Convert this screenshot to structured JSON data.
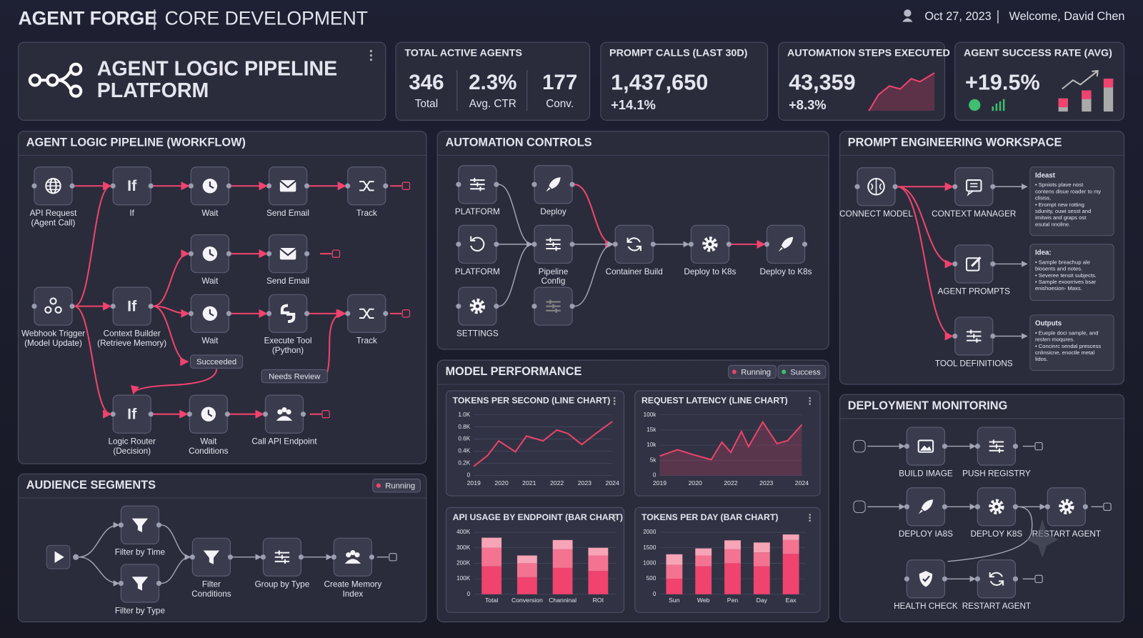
{
  "header": {
    "brand": "AGENT FORGE",
    "section": "CORE DEVELOPMENT",
    "date": "Oct 27, 2023",
    "welcome": "Welcome, David Chen"
  },
  "hero": {
    "title_lines": [
      "AGENT LOGIC PIPELINE",
      "PLATFORM"
    ]
  },
  "kpis": [
    {
      "title": "TOTAL ACTIVE AGENTS",
      "items": [
        {
          "value": "346",
          "label": "Total"
        },
        {
          "value": "2.3%",
          "label": "Avg. CTR"
        },
        {
          "value": "177",
          "label": "Conv."
        }
      ]
    },
    {
      "title": "PROMPT CALLS (LAST 30D)",
      "value": "1,437,650",
      "change": "+14.1%"
    },
    {
      "title": "AUTOMATION STEPS EXECUTED",
      "value": "43,359",
      "change": "+8.3%"
    },
    {
      "title": "AGENT SUCCESS RATE (AVG)",
      "value": "+19.5%"
    }
  ],
  "workflow": {
    "title": "AGENT LOGIC PIPELINE (WORKFLOW)",
    "nodes": [
      {
        "label": [
          "API Request",
          "(Agent Call)"
        ]
      },
      {
        "label": [
          "If"
        ],
        "glyph": "If"
      },
      {
        "label": [
          "Wait"
        ]
      },
      {
        "label": [
          "Send Email"
        ]
      },
      {
        "label": [
          "Track"
        ]
      },
      {
        "label": [
          "Wait"
        ]
      },
      {
        "label": [
          "Send Email"
        ]
      },
      {
        "label": [
          "Webhook Trigger",
          "(Model Update)"
        ]
      },
      {
        "label": [
          "Context Builder",
          "(Retrieve Memory)"
        ],
        "glyph": "If"
      },
      {
        "label": [
          "Wait"
        ]
      },
      {
        "label": [
          "Execute Tool",
          "(Python)"
        ]
      },
      {
        "label": [
          "Track"
        ]
      },
      {
        "label": [
          "Logic Router",
          "(Decision)"
        ],
        "glyph": "If"
      },
      {
        "label": [
          "Wait",
          "Conditions"
        ]
      },
      {
        "label": [
          "Call API Endpoint"
        ]
      }
    ],
    "badges": [
      "Succeeded",
      "Needs Review"
    ]
  },
  "automation": {
    "title": "AUTOMATION CONTROLS",
    "nodes": [
      {
        "label": [
          "PLATFORM"
        ]
      },
      {
        "label": [
          "Deploy"
        ]
      },
      {
        "label": [
          "PLATFORM"
        ]
      },
      {
        "label": [
          "Pipeline",
          "Config"
        ]
      },
      {
        "label": [
          "Container Build"
        ]
      },
      {
        "label": [
          "Deploy to K8s"
        ]
      },
      {
        "label": [
          "Deploy to K8s"
        ]
      },
      {
        "label": [
          "SETTINGS"
        ]
      },
      {
        "label": []
      }
    ]
  },
  "prompt": {
    "title": "PROMPT ENGINEERING WORKSPACE",
    "nodes": [
      {
        "label": [
          "CONNECT MODEL"
        ]
      },
      {
        "label": [
          "CONTEXT MANAGER"
        ]
      },
      {
        "label": [
          "AGENT PROMPTS"
        ]
      },
      {
        "label": [
          "TOOL DEFINITIONS"
        ]
      }
    ],
    "cards": [
      {
        "title": "Ideast",
        "lines": [
          "• Spniots plave nost",
          "contens disue roader to my",
          "clisiss.",
          "• Erompt new rotting",
          "sdunity, ouwi sesst and",
          "imitwis and graps ost",
          "esutal nnoline."
        ]
      },
      {
        "title": "Idea:",
        "lines": [
          "• Sample breachup ale",
          "biosents and notes.",
          "• Severee tensit subjects.",
          "• Sample exoorrives bsar",
          "enishoesion- Maxs."
        ]
      },
      {
        "title": "Outputs",
        "lines": [
          "• Eueple doci sample, and",
          "resten moqures.",
          "• Concinrc sendal prescess",
          "cnlinsicne, enoctle metal",
          "lidos."
        ]
      }
    ]
  },
  "performance": {
    "title": "MODEL PERFORMANCE",
    "badges": [
      {
        "text": "Running",
        "color": "#e8436b"
      },
      {
        "text": "Success",
        "color": "#3fbf6f"
      }
    ],
    "charts": [
      {
        "type": "line",
        "title": "TOKENS PER SECOND (LINE CHART)",
        "color": "#e8436b",
        "area": false,
        "x": [
          2019,
          2019.5,
          2019.9,
          2020.5,
          2020.9,
          2021.5,
          2022,
          2022.4,
          2022.9,
          2023.4,
          2024
        ],
        "values": [
          0.15,
          0.33,
          0.57,
          0.39,
          0.65,
          0.57,
          0.75,
          0.69,
          0.51,
          0.69,
          0.89
        ],
        "xlim": [
          2019,
          2024
        ],
        "xticks": [
          2019,
          2020,
          2021,
          2022,
          2023,
          2024
        ],
        "ylim": [
          0,
          1.0
        ],
        "yticks": [
          0,
          {
            "value": 0.2,
            "label": "0.2K"
          },
          {
            "value": 0.4,
            "label": "0.4K"
          },
          {
            "value": 0.6,
            "label": "0.6K"
          },
          {
            "value": 0.8,
            "label": "0.8K"
          },
          {
            "value": 1.0,
            "label": "1.0K"
          }
        ],
        "grid": true
      },
      {
        "type": "line",
        "title": "REQUEST LATENCY (LINE CHART)",
        "color": "#e8436b",
        "area": true,
        "x": [
          2019,
          2019.5,
          2019.9,
          2020.9,
          2021.5,
          2022,
          2022.3,
          2022.5,
          2022.9,
          2023.3,
          2023.6,
          2024
        ],
        "values": [
          6400,
          8500,
          7000,
          5200,
          11000,
          7600,
          14500,
          9500,
          60000,
          10500,
          11500,
          45000
        ],
        "xlim": [
          2019,
          2024
        ],
        "xticks": [
          2019,
          2020,
          2022,
          2023,
          2024
        ],
        "ylim": [
          0,
          100000
        ],
        "yticks": [
          0,
          {
            "value": 5000,
            "label": "5k"
          },
          {
            "value": 10000,
            "label": "10k"
          },
          {
            "value": 15000,
            "label": "15k"
          },
          {
            "value": 100000,
            "label": "100k"
          }
        ],
        "grid": true
      },
      {
        "type": "bar",
        "title": "API USAGE BY ENDPOINT (BAR CHART)",
        "stacked": true,
        "categories": [
          "Total",
          "Conversion",
          "Channinal",
          "ROI"
        ],
        "series": [
          {
            "color": "#f0436e",
            "values": [
              180000,
              110000,
              170000,
              150000
            ]
          },
          {
            "color": "#f47391",
            "values": [
              120000,
              90000,
              120000,
              100000
            ]
          },
          {
            "color": "#f7a4b6",
            "values": [
              65000,
              50000,
              60000,
              50000
            ]
          }
        ],
        "ylim": [
          0,
          400000
        ],
        "yticks": [
          0,
          {
            "value": 100000,
            "label": "100K"
          },
          {
            "value": 200000,
            "label": "200K"
          },
          {
            "value": 300000,
            "label": "300K"
          },
          {
            "value": 400000,
            "label": "400K"
          }
        ],
        "grid": true
      },
      {
        "type": "bar",
        "title": "TOKENS PER DAY (BAR CHART)",
        "stacked": true,
        "categories": [
          "Sun",
          "Web",
          "Pen",
          "Day",
          "Eax"
        ],
        "series": [
          {
            "color": "#f0436e",
            "values": [
              500,
              900,
              1000,
              900,
              1300
            ]
          },
          {
            "color": "#f47391",
            "values": [
              450,
              350,
              450,
              450,
              450
            ]
          },
          {
            "color": "#f7a4b6",
            "values": [
              340,
              230,
              290,
              320,
              180
            ]
          }
        ],
        "ylim": [
          0,
          2000
        ],
        "yticks": [
          0,
          500,
          1000,
          1500,
          2000
        ],
        "grid": true
      }
    ]
  },
  "audience": {
    "title": "AUDIENCE SEGMENTS",
    "badge": "Running",
    "nodes": [
      {
        "label": [
          "Filter by Time"
        ]
      },
      {
        "label": [
          "Filter by Type"
        ]
      },
      {
        "label": [
          "Filter",
          "Conditions"
        ]
      },
      {
        "label": [
          "Group by Type"
        ]
      },
      {
        "label": [
          "Create Memory",
          "Index"
        ]
      }
    ]
  },
  "deployment": {
    "title": "DEPLOYMENT MONITORING",
    "nodes": [
      {
        "label": [
          "BUILD IMAGE"
        ]
      },
      {
        "label": [
          "PUSH REGISTRY"
        ]
      },
      {
        "label": [
          "DEPLOY IA8S"
        ]
      },
      {
        "label": [
          "DEPLOY K8S"
        ]
      },
      {
        "label": [
          "RESTART AGENT"
        ]
      },
      {
        "label": [
          "HEALTH CHECK"
        ]
      },
      {
        "label": [
          "RESTART AGENT"
        ]
      }
    ]
  }
}
